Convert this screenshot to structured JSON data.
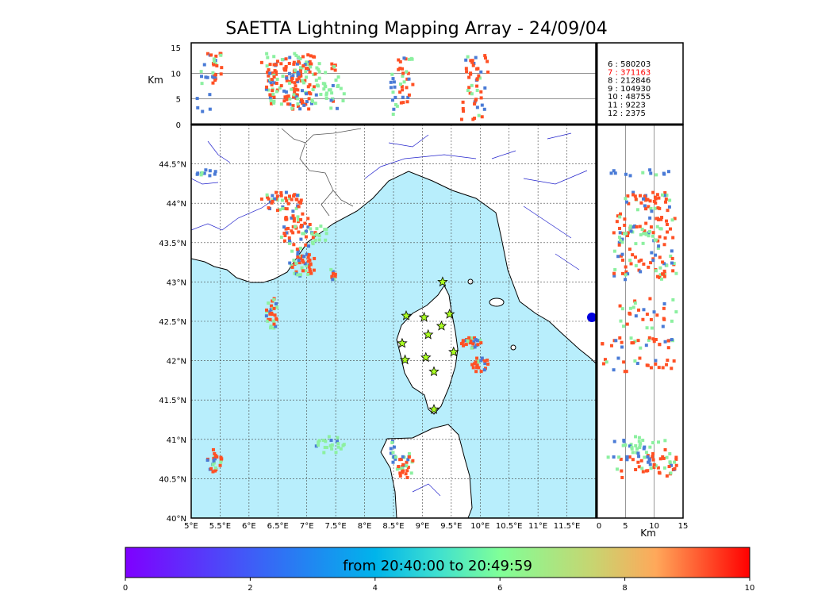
{
  "title": "SAETTA Lightning Mapping Array - 24/09/04",
  "time_range_label": "from 20:40:00 to 20:49:59",
  "axis_unit_km": "Km",
  "map": {
    "lon_ticks": [
      "5°E",
      "5.5°E",
      "6°E",
      "6.5°E",
      "7°E",
      "7.5°E",
      "8°E",
      "8.5°E",
      "9°E",
      "9.5°E",
      "10°E",
      "10.5°E",
      "11°E",
      "11.5°E"
    ],
    "lat_ticks": [
      "40°N",
      "40.5°N",
      "41°N",
      "41.5°N",
      "42°N",
      "42.5°N",
      "43°N",
      "43.5°N",
      "44°N",
      "44.5°N"
    ],
    "lon_range": [
      5,
      12
    ],
    "lat_range": [
      40,
      45
    ],
    "sea_color": "#b8eefc",
    "land_color": "#ffffff"
  },
  "top_panel": {
    "y_ticks": [
      "0",
      "5",
      "10",
      "15"
    ],
    "alt_range": [
      0,
      15
    ]
  },
  "side_panel": {
    "x_ticks": [
      "0",
      "5",
      "10",
      "15"
    ],
    "alt_range": [
      0,
      15
    ]
  },
  "counts": [
    {
      "label": "6  :   580203",
      "color": "#000000"
    },
    {
      "label": "7  :   371163",
      "color": "#ff0000"
    },
    {
      "label": "8  :   212846",
      "color": "#000000"
    },
    {
      "label": "9  :  104930",
      "color": "#000000"
    },
    {
      "label": "10  :    48755",
      "color": "#000000"
    },
    {
      "label": "11  :     9223",
      "color": "#000000"
    },
    {
      "label": "12  :     2375",
      "color": "#000000"
    }
  ],
  "colorbar": {
    "ticks": [
      "0",
      "2",
      "4",
      "6",
      "8",
      "10"
    ],
    "range": [
      0,
      10
    ]
  },
  "stations": [
    {
      "lon": 9.35,
      "lat": 43.0
    },
    {
      "lon": 8.72,
      "lat": 42.57
    },
    {
      "lon": 9.03,
      "lat": 42.55
    },
    {
      "lon": 9.47,
      "lat": 42.59
    },
    {
      "lon": 9.1,
      "lat": 42.33
    },
    {
      "lon": 9.33,
      "lat": 42.44
    },
    {
      "lon": 8.65,
      "lat": 42.22
    },
    {
      "lon": 9.54,
      "lat": 42.11
    },
    {
      "lon": 8.7,
      "lat": 42.01
    },
    {
      "lon": 9.06,
      "lat": 42.04
    },
    {
      "lon": 9.2,
      "lat": 41.86
    },
    {
      "lon": 9.2,
      "lat": 41.38
    }
  ],
  "storm_cells": [
    {
      "lon": 5.3,
      "lat": 44.38,
      "rx": 0.25,
      "ry": 0.05,
      "color": "#4a7bd6",
      "n": 12,
      "altmin": 2,
      "altmax": 13
    },
    {
      "lon": 6.6,
      "lat": 44.02,
      "rx": 0.4,
      "ry": 0.13,
      "color": "#ff5024",
      "n": 45,
      "altmin": 5,
      "altmax": 13
    },
    {
      "lon": 6.85,
      "lat": 43.62,
      "rx": 0.3,
      "ry": 0.3,
      "color": "#ff5024",
      "n": 60,
      "altmin": 3,
      "altmax": 14
    },
    {
      "lon": 6.95,
      "lat": 43.22,
      "rx": 0.25,
      "ry": 0.15,
      "color": "#ff5024",
      "n": 40,
      "altmin": 3,
      "altmax": 14
    },
    {
      "lon": 7.15,
      "lat": 43.6,
      "rx": 0.25,
      "ry": 0.12,
      "color": "#8cf0a0",
      "n": 18,
      "altmin": 4,
      "altmax": 12
    },
    {
      "lon": 7.45,
      "lat": 43.1,
      "rx": 0.07,
      "ry": 0.08,
      "color": "#ff5024",
      "n": 10,
      "altmin": 3,
      "altmax": 12
    },
    {
      "lon": 6.4,
      "lat": 42.6,
      "rx": 0.1,
      "ry": 0.22,
      "color": "#ff5024",
      "n": 30,
      "altmin": 4,
      "altmax": 14
    },
    {
      "lon": 5.4,
      "lat": 40.72,
      "rx": 0.13,
      "ry": 0.15,
      "color": "#ff5024",
      "n": 25,
      "altmin": 8,
      "altmax": 14
    },
    {
      "lon": 7.4,
      "lat": 40.92,
      "rx": 0.25,
      "ry": 0.12,
      "color": "#8cf0a0",
      "n": 22,
      "altmin": 3,
      "altmax": 12
    },
    {
      "lon": 8.7,
      "lat": 40.65,
      "rx": 0.15,
      "ry": 0.2,
      "color": "#ff5024",
      "n": 30,
      "altmin": 3,
      "altmax": 13
    },
    {
      "lon": 8.5,
      "lat": 40.85,
      "rx": 0.05,
      "ry": 0.15,
      "color": "#4a7bd6",
      "n": 12,
      "altmin": 2,
      "altmax": 10
    },
    {
      "lon": 9.85,
      "lat": 42.23,
      "rx": 0.18,
      "ry": 0.07,
      "color": "#ff5024",
      "n": 28,
      "altmin": 1,
      "altmax": 14
    },
    {
      "lon": 10.0,
      "lat": 41.95,
      "rx": 0.15,
      "ry": 0.1,
      "color": "#ff5024",
      "n": 22,
      "altmin": 1,
      "altmax": 14
    }
  ]
}
